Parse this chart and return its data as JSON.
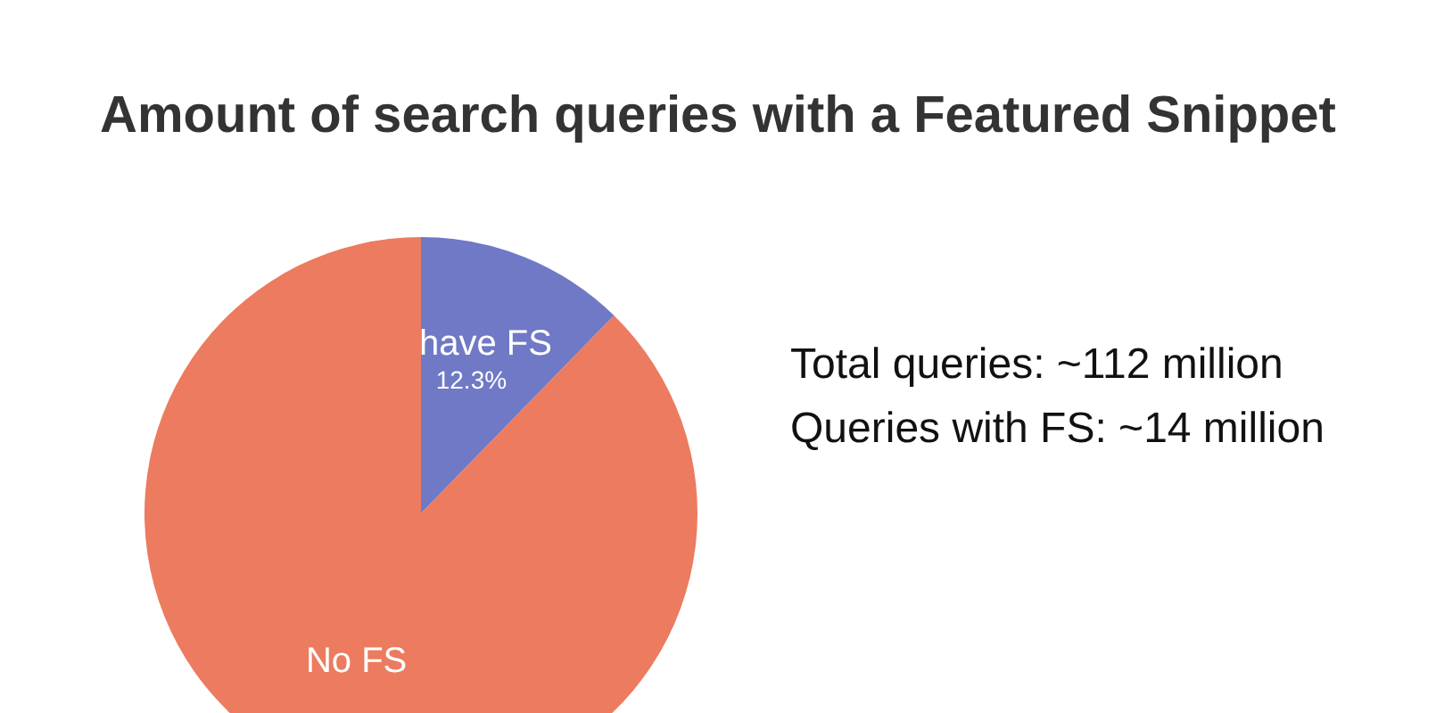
{
  "chart_data": {
    "type": "pie",
    "title": "Amount of search queries with a Featured Snippet",
    "categories": [
      "have FS",
      "No FS"
    ],
    "values": [
      12.3,
      87.7
    ],
    "colors": [
      "#7079c6",
      "#ec7b5f"
    ],
    "value_labels": [
      "12.3%",
      null
    ],
    "annotations": [
      "Total queries: ~112 million",
      "Queries with FS: ~14 million"
    ]
  }
}
